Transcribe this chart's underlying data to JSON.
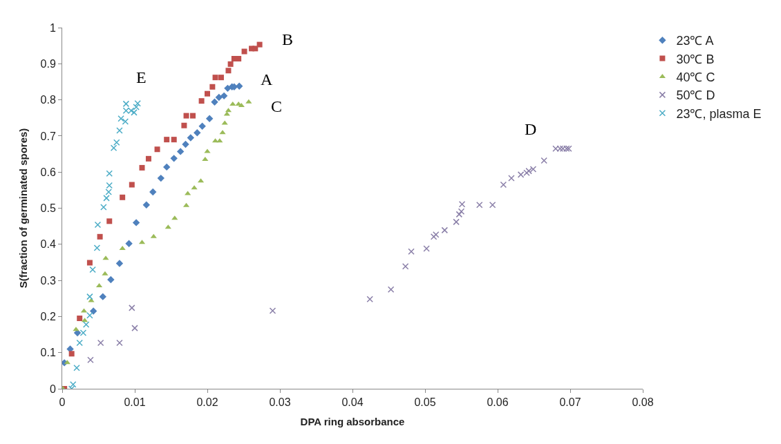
{
  "chart_data": {
    "type": "scatter",
    "xlabel": "DPA ring absorbance",
    "ylabel": "S(fraction of germinated spores)",
    "xlim": [
      0,
      0.08
    ],
    "xticks": [
      0,
      0.01,
      0.02,
      0.03,
      0.04,
      0.05,
      0.06,
      0.07,
      0.08
    ],
    "ylim": [
      0,
      1
    ],
    "yticks": [
      0,
      0.1,
      0.2,
      0.3,
      0.4,
      0.5,
      0.6,
      0.7,
      0.8,
      0.9,
      1
    ],
    "legend": "right",
    "series": [
      {
        "name": "23℃ A",
        "color": "#4f81bd",
        "marker": "diamond",
        "x": [
          0.0003,
          0.0011,
          0.0021,
          0.0043,
          0.0056,
          0.0067,
          0.0079,
          0.0092,
          0.0102,
          0.0116,
          0.0125,
          0.0136,
          0.0144,
          0.0154,
          0.0163,
          0.017,
          0.0177,
          0.0186,
          0.0193,
          0.0203,
          0.021,
          0.0216,
          0.0223,
          0.0228,
          0.0234,
          0.0237,
          0.0244
        ],
        "values": [
          0.072,
          0.11,
          0.155,
          0.215,
          0.255,
          0.302,
          0.347,
          0.402,
          0.46,
          0.509,
          0.545,
          0.583,
          0.614,
          0.638,
          0.657,
          0.677,
          0.695,
          0.709,
          0.727,
          0.748,
          0.794,
          0.807,
          0.811,
          0.832,
          0.836,
          0.836,
          0.838
        ]
      },
      {
        "name": "30℃ B",
        "color": "#c0504d",
        "marker": "square",
        "x": [
          0.0003,
          0.0013,
          0.0024,
          0.0038,
          0.0052,
          0.0065,
          0.0083,
          0.0096,
          0.011,
          0.0119,
          0.0131,
          0.0144,
          0.0154,
          0.0168,
          0.0171,
          0.018,
          0.0192,
          0.02,
          0.0207,
          0.0211,
          0.0219,
          0.0229,
          0.0232,
          0.0237,
          0.0243,
          0.0251,
          0.0261,
          0.0266,
          0.0272
        ],
        "values": [
          0,
          0.097,
          0.195,
          0.349,
          0.421,
          0.464,
          0.53,
          0.565,
          0.612,
          0.637,
          0.663,
          0.69,
          0.69,
          0.729,
          0.756,
          0.756,
          0.797,
          0.817,
          0.836,
          0.862,
          0.862,
          0.881,
          0.899,
          0.914,
          0.914,
          0.934,
          0.942,
          0.942,
          0.953
        ]
      },
      {
        "name": "40℃ C",
        "color": "#9bbb59",
        "marker": "triangle",
        "x": [
          0.0001,
          0.0007,
          0.0019,
          0.0031,
          0.003,
          0.004,
          0.0051,
          0.0059,
          0.006,
          0.0083,
          0.011,
          0.0126,
          0.0146,
          0.0155,
          0.0171,
          0.0173,
          0.0182,
          0.0191,
          0.0197,
          0.02,
          0.0211,
          0.0217,
          0.0221,
          0.0224,
          0.0227,
          0.0229,
          0.0235,
          0.0243,
          0.0247,
          0.0257
        ],
        "values": [
          0,
          0.072,
          0.164,
          0.189,
          0.215,
          0.244,
          0.285,
          0.318,
          0.361,
          0.388,
          0.405,
          0.421,
          0.447,
          0.472,
          0.507,
          0.54,
          0.556,
          0.575,
          0.635,
          0.657,
          0.686,
          0.686,
          0.709,
          0.735,
          0.76,
          0.77,
          0.788,
          0.788,
          0.784,
          0.794
        ]
      },
      {
        "name": "50℃ D",
        "color": "#8a7fa8",
        "marker": "cross",
        "x": [
          0.0039,
          0.0053,
          0.0079,
          0.0096,
          0.01,
          0.029,
          0.0424,
          0.0453,
          0.0473,
          0.0481,
          0.0502,
          0.0512,
          0.0515,
          0.0527,
          0.0543,
          0.0547,
          0.055,
          0.0551,
          0.0575,
          0.0593,
          0.0608,
          0.0619,
          0.0632,
          0.064,
          0.0643,
          0.0649,
          0.0664,
          0.068,
          0.0686,
          0.069,
          0.0695,
          0.0698
        ],
        "values": [
          0.08,
          0.127,
          0.127,
          0.224,
          0.168,
          0.216,
          0.248,
          0.275,
          0.339,
          0.38,
          0.388,
          0.421,
          0.427,
          0.439,
          0.462,
          0.483,
          0.491,
          0.511,
          0.509,
          0.509,
          0.565,
          0.583,
          0.593,
          0.598,
          0.603,
          0.608,
          0.632,
          0.665,
          0.665,
          0.665,
          0.665,
          0.665
        ]
      },
      {
        "name": "23℃, plasma E",
        "color": "#4bacc6",
        "marker": "cross",
        "x": [
          0.0013,
          0.0015,
          0.002,
          0.0024,
          0.0029,
          0.0033,
          0.0038,
          0.0038,
          0.0042,
          0.0048,
          0.0049,
          0.0057,
          0.0061,
          0.0064,
          0.0065,
          0.0065,
          0.0071,
          0.0075,
          0.0079,
          0.0081,
          0.0087,
          0.0088,
          0.0088,
          0.0095,
          0.0099,
          0.0102,
          0.0104
        ],
        "values": [
          0,
          0.012,
          0.058,
          0.127,
          0.155,
          0.178,
          0.203,
          0.255,
          0.33,
          0.39,
          0.454,
          0.503,
          0.528,
          0.545,
          0.563,
          0.596,
          0.667,
          0.682,
          0.715,
          0.748,
          0.74,
          0.789,
          0.77,
          0.77,
          0.765,
          0.78,
          0.79
        ]
      }
    ],
    "annotations": [
      "A",
      "B",
      "C",
      "D",
      "E"
    ]
  }
}
